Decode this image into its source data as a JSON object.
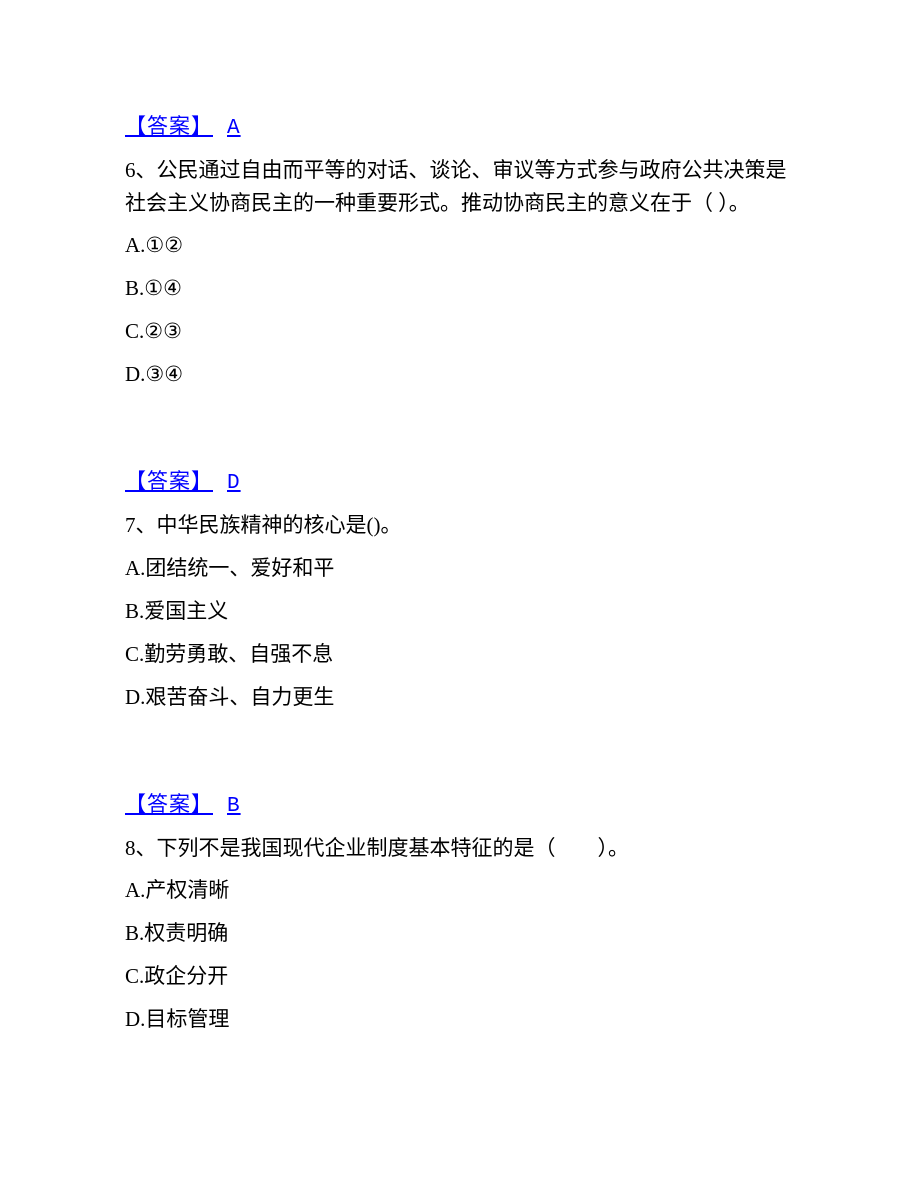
{
  "answers": {
    "q5": {
      "label": "【答案】",
      "value": "A"
    },
    "q6": {
      "label": "【答案】",
      "value": "D"
    },
    "q7": {
      "label": "【答案】",
      "value": "B"
    }
  },
  "questions": {
    "q6": {
      "text": "6、公民通过自由而平等的对话、谈论、审议等方式参与政府公共决策是社会主义协商民主的一种重要形式。推动协商民主的意义在于（ ）。",
      "options": {
        "a": "A.①②",
        "b": "B.①④",
        "c": "C.②③",
        "d": "D.③④"
      }
    },
    "q7": {
      "text": "7、中华民族精神的核心是()。",
      "options": {
        "a": "A.团结统一、爱好和平",
        "b": "B.爱国主义",
        "c": "C.勤劳勇敢、自强不息",
        "d": "D.艰苦奋斗、自力更生"
      }
    },
    "q8": {
      "text": "8、下列不是我国现代企业制度基本特征的是（　　）。",
      "options": {
        "a": "A.产权清晰",
        "b": "B.权责明确",
        "c": "C.政企分开",
        "d": "D.目标管理"
      }
    }
  },
  "colors": {
    "answer_color": "#0000ff",
    "text_color": "#000000",
    "background": "#ffffff"
  },
  "typography": {
    "body_fontsize": 21,
    "font_family": "SimSun"
  }
}
